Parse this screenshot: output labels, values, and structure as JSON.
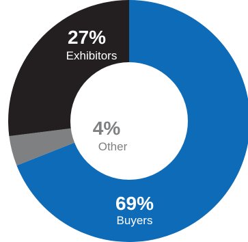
{
  "chart_data": {
    "type": "pie",
    "variant": "donut",
    "slices": [
      {
        "label": "Buyers",
        "value": 69,
        "value_label": "69%",
        "color": "#0E6BB8"
      },
      {
        "label": "Other",
        "value": 4,
        "value_label": "4%",
        "color": "#7F8082"
      },
      {
        "label": "Exhibitors",
        "value": 27,
        "value_label": "27%",
        "color": "#231F20"
      }
    ]
  }
}
